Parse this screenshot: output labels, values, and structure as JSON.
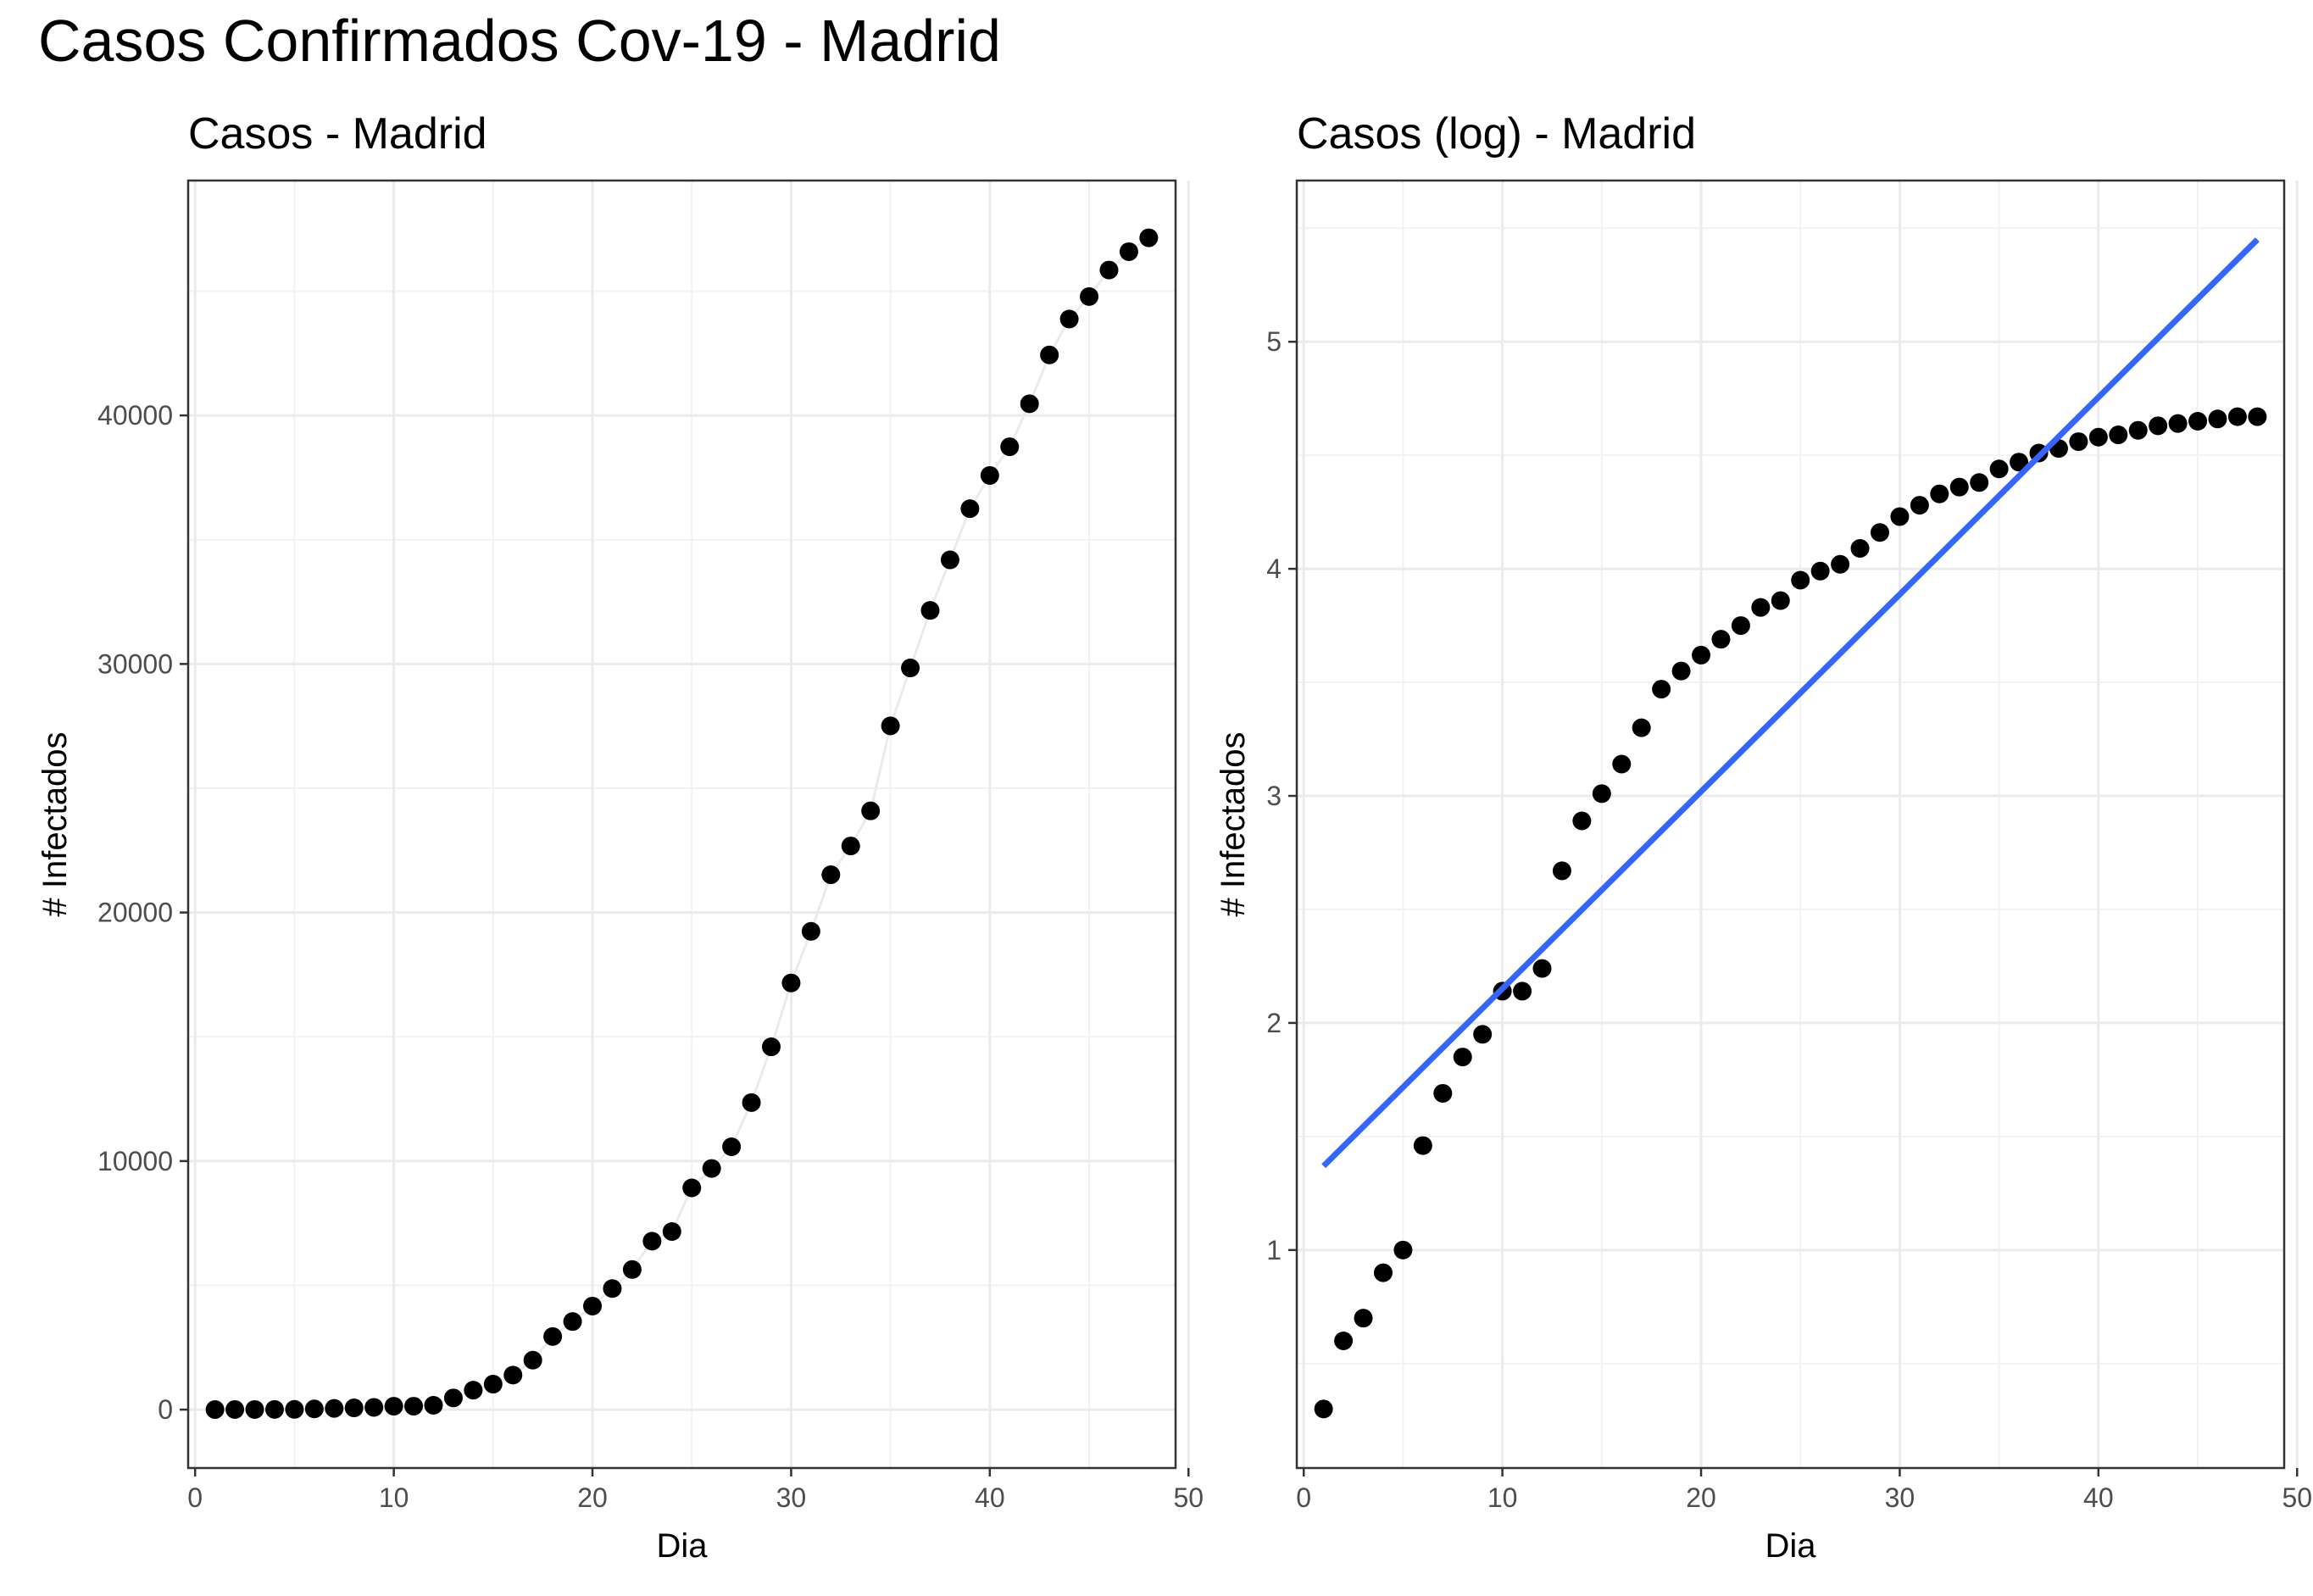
{
  "title": "Casos Confirmados Cov-19 - Madrid",
  "chart_data": [
    {
      "type": "scatter",
      "title": "Casos - Madrid",
      "xlabel": "Dia",
      "ylabel": "# Infectados",
      "xlim": [
        -0.35,
        49.35
      ],
      "ylim": [
        -2350,
        49450
      ],
      "xticks": [
        0,
        10,
        20,
        30,
        40,
        50
      ],
      "yticks": [
        0,
        10000,
        20000,
        30000,
        40000
      ],
      "x": [
        1,
        2,
        3,
        4,
        5,
        6,
        7,
        8,
        9,
        10,
        11,
        12,
        13,
        14,
        15,
        16,
        17,
        18,
        19,
        20,
        21,
        22,
        23,
        24,
        25,
        26,
        27,
        28,
        29,
        30,
        31,
        32,
        33,
        34,
        35,
        36,
        37,
        38,
        39,
        40,
        41,
        42,
        43,
        44,
        45,
        46,
        47,
        48
      ],
      "y": [
        2,
        4,
        5,
        8,
        10,
        29,
        49,
        70,
        90,
        137,
        137,
        174,
        469,
        782,
        1024,
        1388,
        1990,
        2940,
        3544,
        4165,
        4871,
        5637,
        6777,
        7165,
        8921,
        9702,
        10575,
        12352,
        14597,
        17166,
        19243,
        21520,
        22677,
        24090,
        27509,
        29840,
        32155,
        34188,
        36249,
        37584,
        38739,
        40469,
        42434,
        43877,
        44783,
        45849,
        46587,
        47146
      ],
      "trend": {
        "x": [
          1,
          2,
          3,
          4,
          5,
          6,
          7,
          8,
          9,
          10,
          11,
          12,
          13,
          14,
          15,
          16,
          17,
          18,
          19,
          20,
          21,
          22,
          23,
          24,
          25,
          26,
          27,
          28,
          29,
          30,
          31,
          32,
          33,
          34,
          35,
          36,
          37,
          38,
          39,
          40,
          41,
          42,
          43,
          44,
          45,
          46,
          47,
          48
        ],
        "y": [
          2,
          4,
          5,
          8,
          10,
          29,
          49,
          70,
          90,
          137,
          137,
          174,
          469,
          782,
          1024,
          1388,
          1990,
          2940,
          3544,
          4165,
          4871,
          5637,
          6777,
          7165,
          8921,
          9702,
          10575,
          12352,
          14597,
          17166,
          19243,
          21520,
          22677,
          24090,
          27509,
          29840,
          32155,
          34188,
          36249,
          37584,
          38739,
          40469,
          42434,
          43877,
          44783,
          45849,
          46587,
          47146
        ]
      },
      "grid": true,
      "colors": {
        "points": "#000000",
        "trend": "#ebebeb"
      }
    },
    {
      "type": "scatter",
      "title": "Casos (log) - Madrid",
      "xlabel": "Dia",
      "ylabel": "# Infectados",
      "xlim": [
        -0.35,
        49.35
      ],
      "ylim": [
        0.04,
        5.71
      ],
      "xticks": [
        0,
        10,
        20,
        30,
        40,
        50
      ],
      "yticks": [
        1,
        2,
        3,
        4,
        5
      ],
      "x": [
        1,
        2,
        3,
        4,
        5,
        6,
        7,
        8,
        9,
        10,
        11,
        12,
        13,
        14,
        15,
        16,
        17,
        18,
        19,
        20,
        21,
        22,
        23,
        24,
        25,
        26,
        27,
        28,
        29,
        30,
        31,
        32,
        33,
        34,
        35,
        36,
        37,
        38,
        39,
        40,
        41,
        42,
        43,
        44,
        45,
        46,
        47,
        48
      ],
      "y": [
        0.3,
        0.6,
        0.7,
        0.9,
        1.0,
        1.46,
        1.69,
        1.85,
        1.95,
        2.14,
        2.14,
        2.24,
        2.67,
        2.89,
        3.01,
        3.14,
        3.3,
        3.47,
        3.55,
        3.62,
        3.69,
        3.75,
        3.83,
        3.86,
        3.95,
        3.99,
        4.02,
        4.09,
        4.16,
        4.23,
        4.28,
        4.33,
        4.36,
        4.38,
        4.44,
        4.47,
        4.51,
        4.53,
        4.56,
        4.58,
        4.59,
        4.61,
        4.63,
        4.64,
        4.65,
        4.66,
        4.67,
        4.67
      ],
      "fit": {
        "x": [
          1,
          48
        ],
        "y": [
          1.37,
          5.45
        ]
      },
      "grid": true,
      "colors": {
        "points": "#000000",
        "fit": "#3366ff"
      }
    }
  ]
}
